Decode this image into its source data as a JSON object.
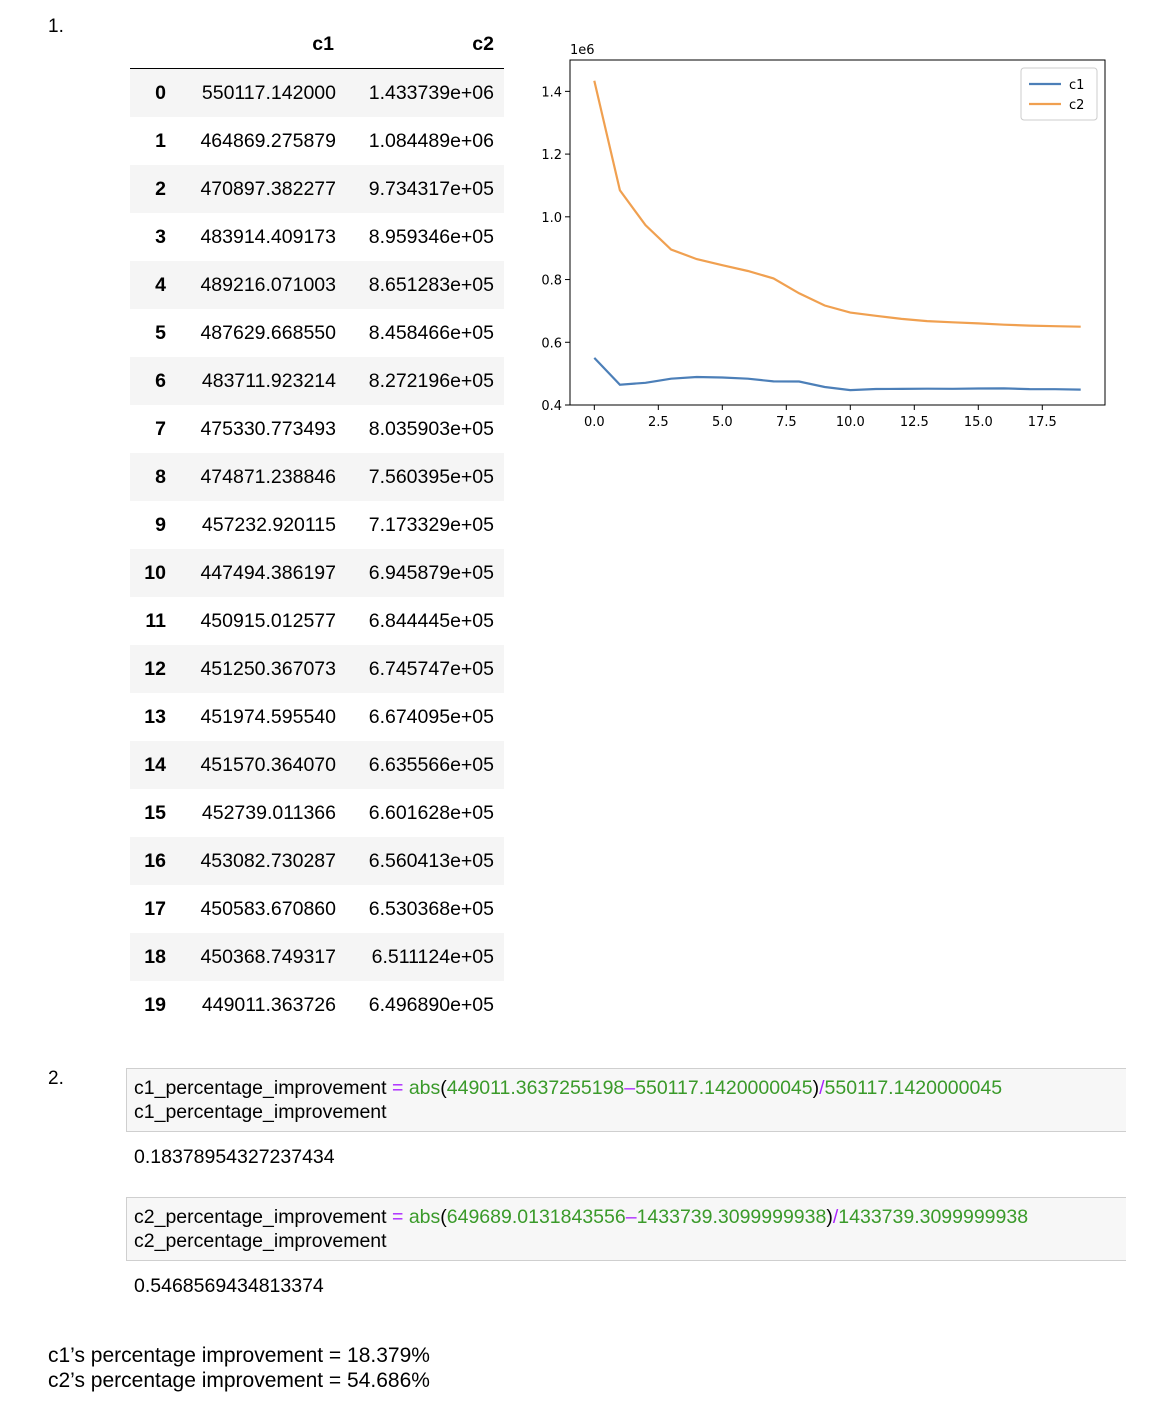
{
  "section_labels": [
    "1.",
    "2."
  ],
  "table": {
    "columns": [
      "c1",
      "c2"
    ],
    "rows": [
      {
        "idx": "0",
        "c1": "550117.142000",
        "c2": "1.433739e+06"
      },
      {
        "idx": "1",
        "c1": "464869.275879",
        "c2": "1.084489e+06"
      },
      {
        "idx": "2",
        "c1": "470897.382277",
        "c2": "9.734317e+05"
      },
      {
        "idx": "3",
        "c1": "483914.409173",
        "c2": "8.959346e+05"
      },
      {
        "idx": "4",
        "c1": "489216.071003",
        "c2": "8.651283e+05"
      },
      {
        "idx": "5",
        "c1": "487629.668550",
        "c2": "8.458466e+05"
      },
      {
        "idx": "6",
        "c1": "483711.923214",
        "c2": "8.272196e+05"
      },
      {
        "idx": "7",
        "c1": "475330.773493",
        "c2": "8.035903e+05"
      },
      {
        "idx": "8",
        "c1": "474871.238846",
        "c2": "7.560395e+05"
      },
      {
        "idx": "9",
        "c1": "457232.920115",
        "c2": "7.173329e+05"
      },
      {
        "idx": "10",
        "c1": "447494.386197",
        "c2": "6.945879e+05"
      },
      {
        "idx": "11",
        "c1": "450915.012577",
        "c2": "6.844445e+05"
      },
      {
        "idx": "12",
        "c1": "451250.367073",
        "c2": "6.745747e+05"
      },
      {
        "idx": "13",
        "c1": "451974.595540",
        "c2": "6.674095e+05"
      },
      {
        "idx": "14",
        "c1": "451570.364070",
        "c2": "6.635566e+05"
      },
      {
        "idx": "15",
        "c1": "452739.011366",
        "c2": "6.601628e+05"
      },
      {
        "idx": "16",
        "c1": "453082.730287",
        "c2": "6.560413e+05"
      },
      {
        "idx": "17",
        "c1": "450583.670860",
        "c2": "6.530368e+05"
      },
      {
        "idx": "18",
        "c1": "450368.749317",
        "c2": "6.511124e+05"
      },
      {
        "idx": "19",
        "c1": "449011.363726",
        "c2": "6.496890e+05"
      }
    ]
  },
  "chart_data": {
    "type": "line",
    "title": "",
    "xlabel": "",
    "ylabel": "",
    "offset_label": "1e6",
    "x": [
      0,
      1,
      2,
      3,
      4,
      5,
      6,
      7,
      8,
      9,
      10,
      11,
      12,
      13,
      14,
      15,
      16,
      17,
      18,
      19
    ],
    "series": [
      {
        "name": "c1",
        "color": "#4c7fb8",
        "values": [
          550117.142,
          464869.275879,
          470897.382277,
          483914.409173,
          489216.071003,
          487629.66855,
          483711.923214,
          475330.773493,
          474871.238846,
          457232.920115,
          447494.386197,
          450915.012577,
          451250.367073,
          451974.59554,
          451570.36407,
          452739.011366,
          453082.730287,
          450583.67086,
          450368.749317,
          449011.363726
        ]
      },
      {
        "name": "c2",
        "color": "#f0a050",
        "values": [
          1433739,
          1084489,
          973431.7,
          895934.6,
          865128.3,
          845846.6,
          827219.6,
          803590.3,
          756039.5,
          717332.9,
          694587.9,
          684444.5,
          674574.7,
          667409.5,
          663556.6,
          660162.8,
          656041.3,
          653036.8,
          651112.4,
          649689.0
        ]
      }
    ],
    "xlim": [
      -0.95,
      19.95
    ],
    "ylim": [
      400000,
      1500000
    ],
    "xticks": [
      0.0,
      2.5,
      5.0,
      7.5,
      10.0,
      12.5,
      15.0,
      17.5
    ],
    "xtick_labels": [
      "0.0",
      "2.5",
      "5.0",
      "7.5",
      "10.0",
      "12.5",
      "15.0",
      "17.5"
    ],
    "yticks": [
      400000,
      600000,
      800000,
      1000000,
      1200000,
      1400000
    ],
    "ytick_labels": [
      "0.4",
      "0.6",
      "0.8",
      "1.0",
      "1.2",
      "1.4"
    ],
    "grid": false,
    "legend": "top-right"
  },
  "cells": [
    {
      "var": "c1_percentage_improvement",
      "eq": "=",
      "fn": "abs",
      "open": "(",
      "a": "449011.3637255198",
      "minus": "–",
      "b": "550117.1420000045",
      "close": ")",
      "div": "/",
      "c": "550117.1420000045",
      "line2": "c1_percentage_improvement",
      "output": "0.18378954327237434"
    },
    {
      "var": "c2_percentage_improvement",
      "eq": "=",
      "fn": "abs",
      "open": "(",
      "a": "649689.0131843556",
      "minus": "–",
      "b": "1433739.3099999938",
      "close": ")",
      "div": "/",
      "c": "1433739.3099999938",
      "line2": "c2_percentage_improvement",
      "output": "0.5468569434813374"
    }
  ],
  "summary": [
    "c1’s percentage improvement = 18.379%",
    "c2’s percentage improvement = 54.686%"
  ]
}
